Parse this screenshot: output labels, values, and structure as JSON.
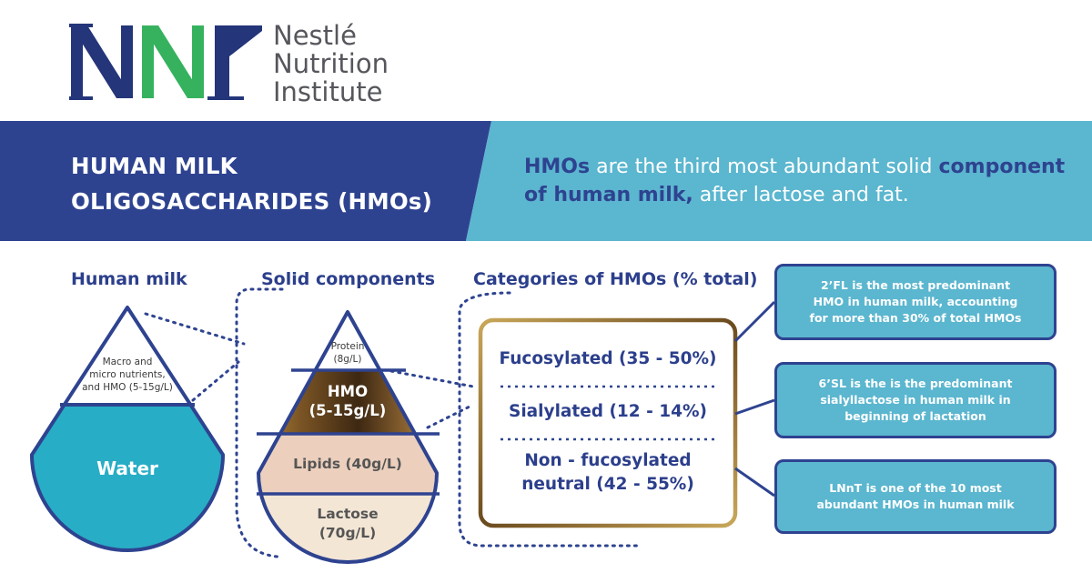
{
  "logo": {
    "monogram": "NNI",
    "brand_lines": [
      "Nestlé",
      "Nutrition",
      "Institute"
    ],
    "colors": {
      "navy": "#24357a",
      "green": "#36b25f"
    }
  },
  "banner": {
    "title_lines": [
      "HUMAN MILK",
      "OLIGOSACCHARIDES (HMOs)"
    ],
    "statement": {
      "part1": "HMOs",
      "part2": " are the third most abundant solid ",
      "part3": "component of human milk,",
      "part4": " after lactose and fat."
    },
    "colors": {
      "left": "#2e4390",
      "right": "#5bb6cf"
    }
  },
  "human_milk": {
    "heading": "Human milk",
    "top_label_lines": [
      "Macro and",
      "micro nutrients,",
      "and HMO (5-15g/L)"
    ],
    "water_label": "Water"
  },
  "solid_components": {
    "heading": "Solid components",
    "protein_lines": [
      "Protein",
      "(8g/L)"
    ],
    "hmo_lines": [
      "HMO",
      "(5-15g/L)"
    ],
    "lipids": "Lipids (40g/L)",
    "lactose_lines": [
      "Lactose",
      "(70g/L)"
    ]
  },
  "categories": {
    "heading": "Categories of HMOs (% total)",
    "fucosylated": "Fucosylated (35 - 50%)",
    "sialylated": "Sialylated (12 - 14%)",
    "nonfuco_lines": [
      "Non - fucosylated",
      "neutral (42 - 55%)"
    ]
  },
  "info_boxes": [
    {
      "lines": [
        "2’FL is the most predominant",
        "HMO in human milk, accounting",
        "for more than 30% of total HMOs"
      ]
    },
    {
      "lines": [
        "6’SL is the  is the predominant",
        "sialyllactose in human milk in",
        "beginning of lactation"
      ]
    },
    {
      "lines": [
        "LNnT  is one of the 10 most",
        "abundant HMOs in human milk"
      ]
    }
  ]
}
